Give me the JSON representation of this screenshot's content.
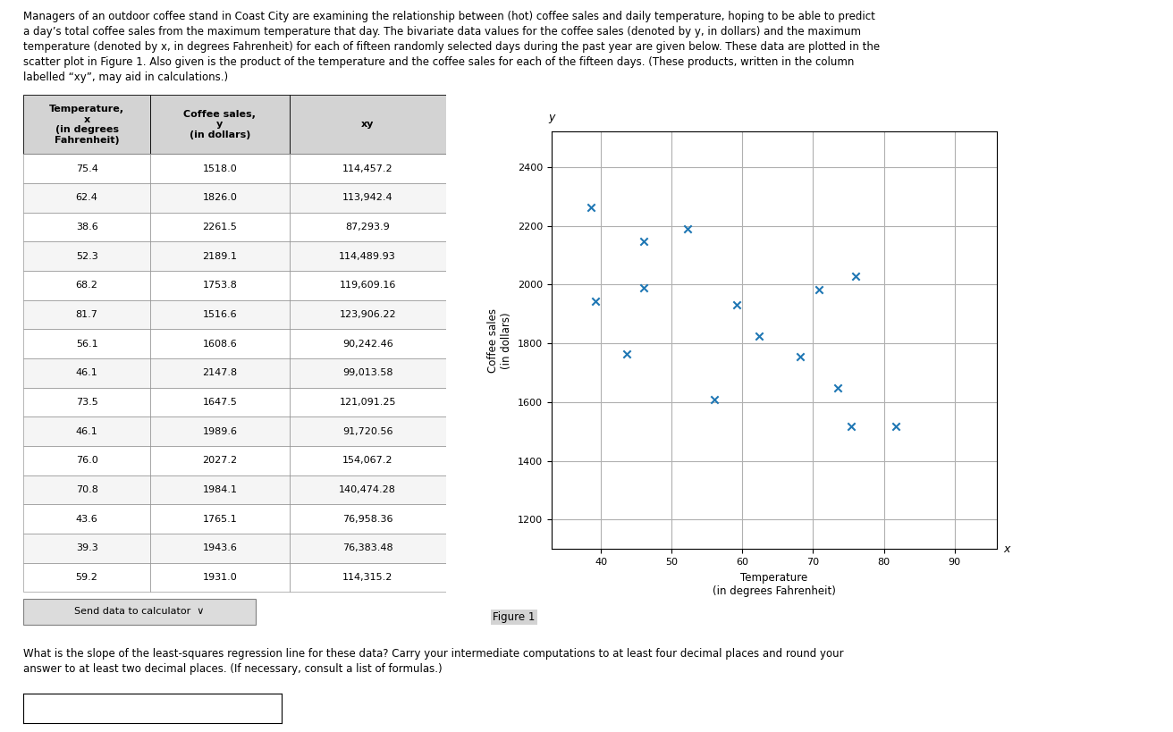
{
  "chart_data": {
    "type": "scatter",
    "x": [
      75.4,
      62.4,
      38.6,
      52.3,
      68.2,
      81.7,
      56.1,
      46.1,
      73.5,
      46.1,
      76.0,
      70.8,
      43.6,
      39.3,
      59.2
    ],
    "values": [
      1518.0,
      1826.0,
      2261.5,
      2189.1,
      1753.8,
      1516.6,
      1608.6,
      2147.8,
      1647.5,
      1989.6,
      2027.2,
      1984.1,
      1765.1,
      1943.6,
      1931.0
    ],
    "x_label": "Temperature\n(in degrees Fahrenheit)",
    "y_label": "Coffee sales\n(in dollars)",
    "xlim": [
      33,
      96
    ],
    "ylim": [
      1100,
      2520
    ],
    "xticks": [
      40,
      50,
      60,
      70,
      80,
      90
    ],
    "yticks": [
      1200,
      1400,
      1600,
      1800,
      2000,
      2200,
      2400
    ],
    "grid": true,
    "marker": "x",
    "annotations": [
      "y",
      "x"
    ],
    "caption": "Figure 1"
  },
  "paragraph": "Managers of an outdoor coffee stand in Coast City are examining the relationship between (hot) coffee sales and daily temperature, hoping to be able to predict\na day’s total coffee sales from the maximum temperature that day. The bivariate data values for the coffee sales (denoted by y, in dollars) and the maximum\ntemperature (denoted by x, in degrees Fahrenheit) for each of fifteen randomly selected days during the past year are given below. These data are plotted in the\nscatter plot in Figure 1. Also given is the product of the temperature and the coffee sales for each of the fifteen days. (These products, written in the column\nlabelled “xy”, may aid in calculations.)",
  "table": {
    "headers": [
      "Temperature,\nx\n(in degrees\nFahrenheit)",
      "Coffee sales,\ny\n(in dollars)",
      "xy"
    ],
    "xy": [
      "114,457.2",
      "113,942.4",
      "87,293.9",
      "114,489.93",
      "119,609.16",
      "123,906.22",
      "90,242.46",
      "99,013.58",
      "121,091.25",
      "91,720.56",
      "154,067.2",
      "140,474.28",
      "76,958.36",
      "76,383.48",
      "114,315.2"
    ]
  },
  "button_text": "Send data to calculator  ∨",
  "question": "What is the slope of the least-squares regression line for these data? Carry your intermediate computations to at least four decimal places and round your\nanswer to at least two decimal places. (If necessary, consult a list of formulas.)"
}
